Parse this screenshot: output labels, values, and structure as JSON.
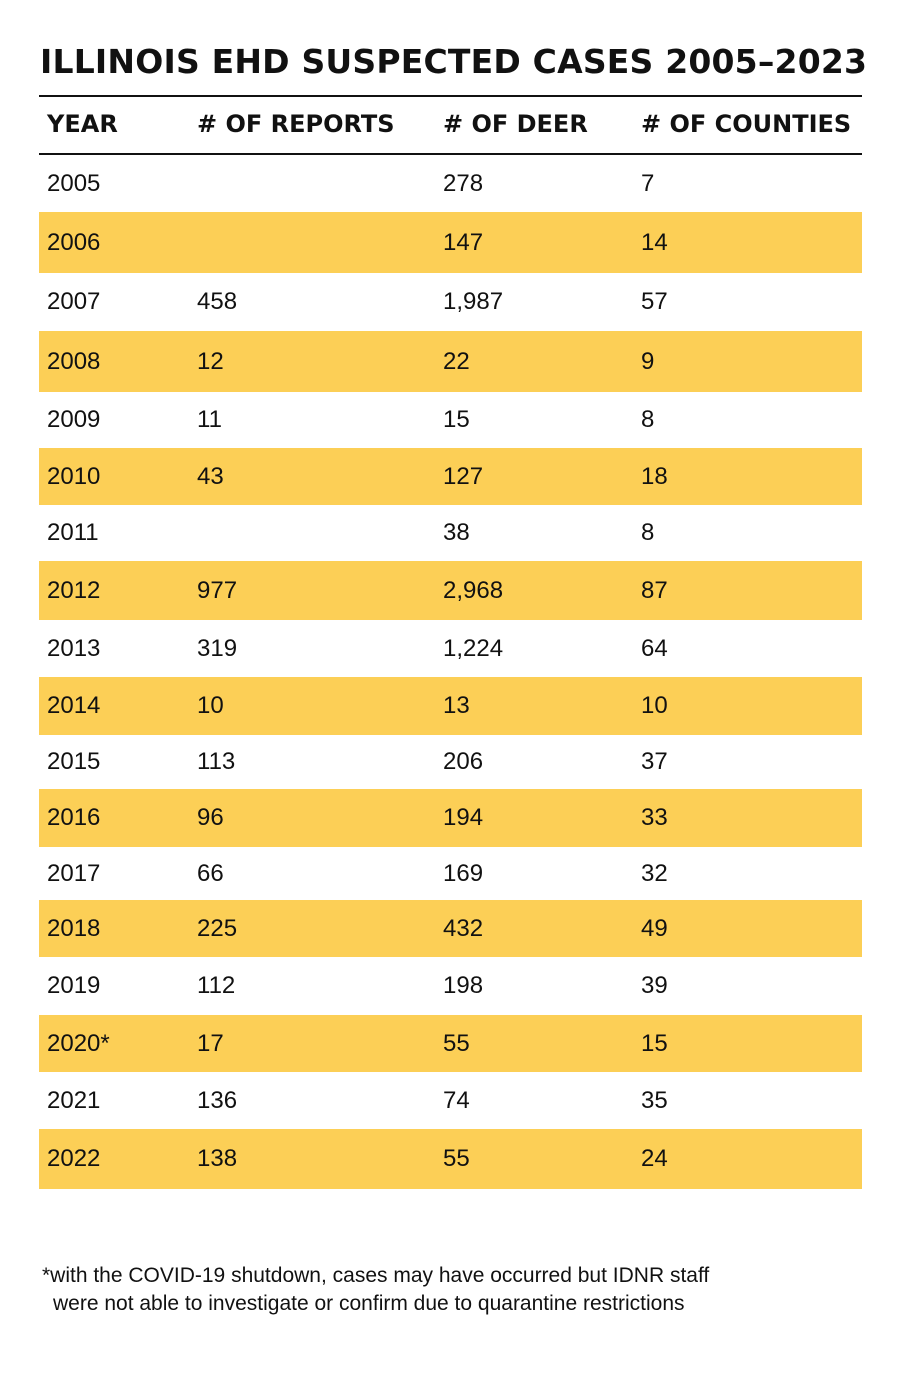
{
  "chart_data": {
    "type": "table",
    "title": "ILLINOIS EHD SUSPECTED CASES 2005–2023",
    "columns": [
      "YEAR",
      "# OF REPORTS",
      "# OF DEER",
      "# OF COUNTIES"
    ],
    "rows": [
      [
        "2005",
        "",
        "278",
        "7"
      ],
      [
        "2006",
        "",
        "147",
        "14"
      ],
      [
        "2007",
        "458",
        "1,987",
        "57"
      ],
      [
        "2008",
        "12",
        "22",
        "9"
      ],
      [
        "2009",
        "11",
        "15",
        "8"
      ],
      [
        "2010",
        "43",
        "127",
        "18"
      ],
      [
        "2011",
        "",
        "38",
        "8"
      ],
      [
        "2012",
        "977",
        "2,968",
        "87"
      ],
      [
        "2013",
        "319",
        "1,224",
        "64"
      ],
      [
        "2014",
        "10",
        "13",
        "10"
      ],
      [
        "2015",
        "113",
        "206",
        "37"
      ],
      [
        "2016",
        "96",
        "194",
        "33"
      ],
      [
        "2017",
        "66",
        "169",
        "32"
      ],
      [
        "2018",
        "225",
        "432",
        "49"
      ],
      [
        "2019",
        "112",
        "198",
        "39"
      ],
      [
        "2020*",
        "17",
        "55",
        "15"
      ],
      [
        "2021",
        "136",
        "74",
        "35"
      ],
      [
        "2022",
        "138",
        "55",
        "24"
      ]
    ],
    "shaded_row_color": "#fccf56",
    "footnote": [
      "*with the COVID-19 shutdown, cases may have occurred but IDNR staff",
      "were not able to investigate or confirm due to quarantine restrictions"
    ]
  }
}
